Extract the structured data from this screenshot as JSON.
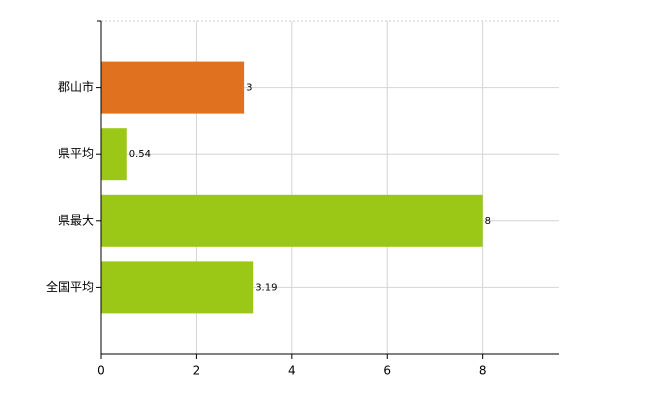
{
  "chart_data": {
    "type": "bar",
    "orientation": "horizontal",
    "categories": [
      "郡山市",
      "県平均",
      "県最大",
      "全国平均"
    ],
    "values": [
      3,
      0.54,
      8,
      3.19
    ],
    "colors": [
      "#e0711f",
      "#9bc716",
      "#9bc716",
      "#9bc716"
    ],
    "xlim": [
      0,
      9.6
    ],
    "xticks": [
      0,
      2,
      4,
      6,
      8
    ],
    "grid": true
  }
}
